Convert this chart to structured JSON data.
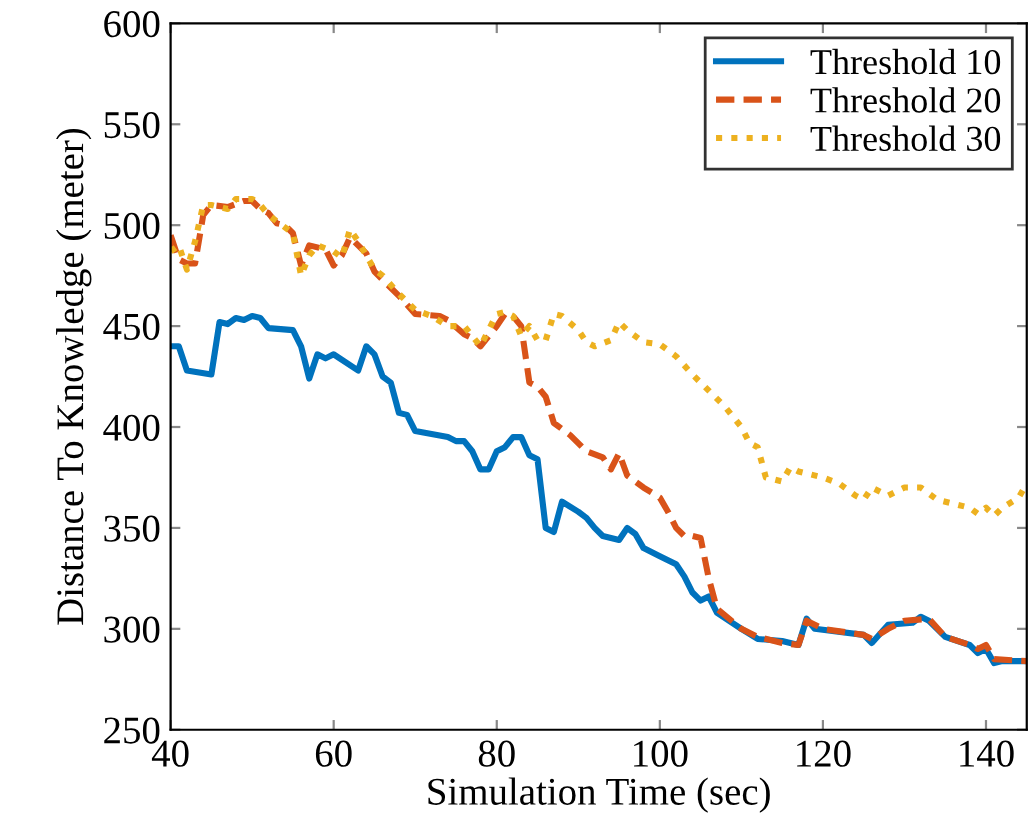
{
  "chart_data": {
    "type": "line",
    "xlabel": "Simulation Time (sec)",
    "ylabel": "Distance To Knowledge (meter)",
    "xlim": [
      40,
      145
    ],
    "ylim": [
      250,
      600
    ],
    "xticks": [
      40,
      60,
      80,
      100,
      120,
      140
    ],
    "yticks": [
      250,
      300,
      350,
      400,
      450,
      500,
      550,
      600
    ],
    "grid": false,
    "legend": "top right",
    "marker": "none",
    "series": [
      {
        "name": "Threshold 10",
        "color": "#0072bd",
        "line_style": "solid",
        "x": [
          40,
          41,
          42,
          45,
          46,
          47,
          48,
          49,
          50,
          51,
          52,
          55,
          56,
          57,
          58,
          59,
          60,
          63,
          64,
          65,
          66,
          67,
          68,
          69,
          70,
          74,
          75,
          76,
          77,
          78,
          79,
          80,
          81,
          82,
          83,
          84,
          85,
          86,
          87,
          88,
          90,
          91,
          92,
          93,
          95,
          96,
          97,
          98,
          100,
          102,
          103,
          104,
          105,
          106,
          107,
          110,
          112,
          115,
          117,
          118,
          119,
          125,
          126,
          128,
          131,
          132,
          133,
          135,
          138,
          139,
          140,
          141,
          142,
          145
        ],
        "values": [
          440,
          440,
          428,
          426,
          452,
          451,
          454,
          453,
          455,
          454,
          449,
          448,
          440,
          424,
          436,
          434,
          436,
          428,
          440,
          436,
          425,
          422,
          407,
          406,
          398,
          395,
          393,
          393,
          388,
          379,
          379,
          388,
          390,
          395,
          395,
          386,
          384,
          350,
          348,
          363,
          358,
          355,
          350,
          346,
          344,
          350,
          347,
          340,
          336,
          332,
          326,
          318,
          314,
          316,
          308,
          300,
          295,
          294,
          292,
          305,
          300,
          297,
          293,
          302,
          303,
          306,
          304,
          296,
          292,
          288,
          290,
          283,
          284,
          284
        ]
      },
      {
        "name": "Threshold 20",
        "color": "#d95319",
        "line_style": "dashed",
        "x": [
          40,
          41,
          42,
          43,
          44,
          45,
          47,
          49,
          50,
          51,
          52,
          53,
          54,
          55,
          56,
          57,
          58,
          59,
          60,
          61,
          62,
          63,
          64,
          65,
          66,
          68,
          70,
          73,
          74,
          76,
          77,
          78,
          79,
          80,
          81,
          82,
          83,
          84,
          85,
          86,
          87,
          89,
          91,
          93,
          94,
          95,
          96,
          98,
          100,
          101,
          102,
          103,
          104,
          105,
          106,
          107,
          110,
          112,
          115,
          117,
          118,
          120,
          125,
          126,
          128,
          130,
          133,
          135,
          138,
          139,
          140,
          141,
          145
        ],
        "values": [
          495,
          483,
          481,
          481,
          505,
          510,
          509,
          512,
          512,
          508,
          506,
          501,
          500,
          496,
          480,
          490,
          489,
          488,
          480,
          485,
          494,
          490,
          486,
          477,
          473,
          465,
          456,
          455,
          453,
          446,
          444,
          440,
          445,
          450,
          456,
          455,
          450,
          422,
          420,
          415,
          402,
          396,
          388,
          385,
          379,
          387,
          376,
          370,
          365,
          358,
          350,
          346,
          346,
          345,
          325,
          310,
          300,
          296,
          293,
          292,
          304,
          300,
          297,
          295,
          300,
          304,
          305,
          296,
          292,
          290,
          292,
          285,
          284
        ]
      },
      {
        "name": "Threshold 30",
        "color": "#edb120",
        "line_style": "dotted",
        "x": [
          40,
          41,
          42,
          43,
          44,
          45,
          47,
          48,
          50,
          51,
          52,
          53,
          55,
          56,
          57,
          58,
          60,
          61,
          62,
          63,
          64,
          65,
          66,
          68,
          70,
          72,
          74,
          76,
          77,
          78,
          80,
          81,
          82,
          83,
          84,
          85,
          86,
          87,
          88,
          90,
          91,
          92,
          94,
          95,
          96,
          98,
          100,
          102,
          104,
          106,
          108,
          110,
          111,
          112,
          113,
          114,
          115,
          116,
          117,
          120,
          122,
          124,
          125,
          126,
          128,
          130,
          132,
          134,
          136,
          138,
          139,
          140,
          141,
          142,
          144,
          145
        ],
        "values": [
          487,
          490,
          478,
          492,
          510,
          510,
          508,
          513,
          513,
          510,
          505,
          502,
          496,
          475,
          485,
          490,
          487,
          484,
          498,
          492,
          485,
          478,
          475,
          466,
          458,
          455,
          450,
          450,
          445,
          440,
          456,
          457,
          455,
          445,
          450,
          443,
          443,
          456,
          455,
          448,
          442,
          440,
          443,
          452,
          448,
          442,
          441,
          435,
          426,
          418,
          410,
          400,
          392,
          390,
          375,
          374,
          373,
          380,
          378,
          375,
          372,
          366,
          364,
          370,
          366,
          370,
          370,
          364,
          362,
          360,
          357,
          360,
          356,
          360,
          365,
          372
        ]
      }
    ]
  }
}
